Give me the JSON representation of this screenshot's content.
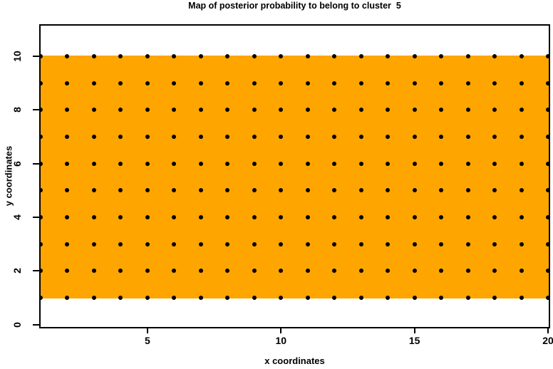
{
  "chart_data": {
    "type": "heatmap",
    "title": "Map of posterior probability to belong to cluster  5",
    "xlabel": "x coordinates",
    "ylabel": "y coordinates",
    "x_ticks": [
      5,
      10,
      15,
      20
    ],
    "y_ticks": [
      0,
      2,
      4,
      6,
      8,
      10
    ],
    "x_values": [
      1,
      2,
      3,
      4,
      5,
      6,
      7,
      8,
      9,
      10,
      11,
      12,
      13,
      14,
      15,
      16,
      17,
      18,
      19,
      20
    ],
    "y_values": [
      1,
      2,
      3,
      4,
      5,
      6,
      7,
      8,
      9,
      10
    ],
    "xlim": [
      0.95,
      20.06
    ],
    "ylim": [
      -0.25,
      11.3
    ],
    "region": {
      "x_min": 1,
      "x_max": 20,
      "y_min": 1,
      "y_max": 10,
      "fill_color": "#FFA500"
    },
    "points": {
      "shape": "filled-circle",
      "color": "#000000",
      "grid": "every integer (x,y) with x 1-20 and y 1-10"
    },
    "frame_color": "#000000",
    "background_color": "#FFFFFF",
    "legend": "none",
    "grid_lines": false
  }
}
